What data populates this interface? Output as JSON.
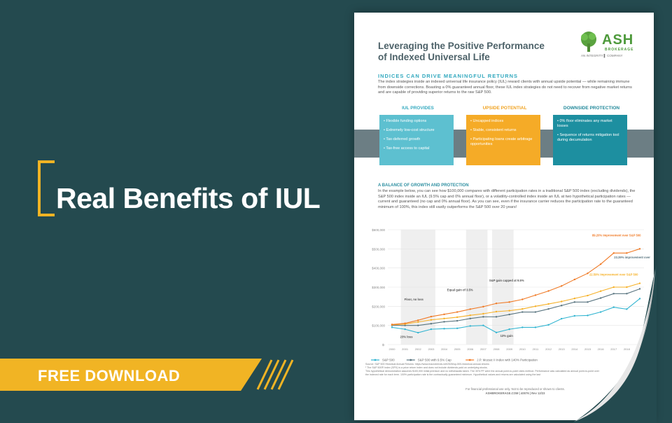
{
  "hero": {
    "title": "Real Benefits of IUL",
    "cta": "FREE DOWNLOAD"
  },
  "colors": {
    "background": "#244a4f",
    "accent": "#f1b424",
    "teal": "#33a9bf",
    "orange": "#f5ab27",
    "dark_teal": "#1d8fa0"
  },
  "doc": {
    "title_line1": "Leveraging the Positive Performance",
    "title_line2": "of Indexed Universal Life",
    "logo": {
      "name": "ASH",
      "sub": "BROKERAGE",
      "tagline": "AN INTEGRITY ▌ COMPANY",
      "icon": "tree-icon"
    },
    "section1_heading": "INDICES CAN DRIVE MEANINGFUL RETURNS",
    "section1_body": "The index strategies inside an indexed universal life insurance policy (IUL) reward clients with annual upside potential — while remaining immune from downside corrections. Boasting a 0% guaranteed annual floor, these IUL index strategies do not need to recover from negative market returns and are capable of providing superior returns to the raw S&P 500.",
    "columns": [
      {
        "heading": "IUL PROVIDES",
        "items": [
          "Flexible funding options",
          "Extremely low-cost structure",
          "Tax-deferred growth",
          "Tax-free access to capital"
        ]
      },
      {
        "heading": "UPSIDE POTENTIAL",
        "items": [
          "Uncapped indices",
          "Stable, consistent returns",
          "Participating loans create arbitrage opportunities"
        ]
      },
      {
        "heading": "DOWNSIDE PROTECTION",
        "items": [
          "0% floor eliminates any market losses",
          "Sequence of returns mitigation tool during decumulation"
        ]
      }
    ],
    "section2_heading": "A BALANCE OF GROWTH AND PROTECTION",
    "section2_body": "In the example below, you can see how $100,000 compares with different participation rates in a traditional S&P 500 index (excluding dividends), the S&P 500 index inside an IUL (9.5% cap and 0% annual floor), or a volatility-controlled index inside an IUL at two hypothetical participation rates — current and guaranteed (no cap and 0% annual floor). As you can see, even if the insurance carrier reduces the participation rate to the guaranteed minimum of 100%, this index still vastly outperforms the S&P 500 over 20 years!",
    "source_line": "Source: S&P 500 Historical Annual Returns: https://www.macrotrends.net/2526/sp-500-historical-annual-returns",
    "fine_print1": "¹ The S&P 500® Index (SPX) is a price return index and does not include dividends paid on underlying stocks.",
    "fine_print2": "This hypothetical demonstration assumes $100,000 initial premium and no withdrawals taken. The 30% PF were the annual point-to-point rates method. Performance was calculated as annual point-to-point over",
    "fine_print3": "the indexed rate for each term. 100% participation rate is the contractually guaranteed minimum. Hypothetical values and returns are calculated using the last",
    "disclaimer": "For financial professional use only. Not to be reproduced or shown to clients.",
    "footer": "ASHBROKERAGE.COM  |  40076  |  Rev 12/23"
  },
  "chart_data": {
    "type": "line",
    "x": [
      "2000",
      "2001",
      "2002",
      "2003",
      "2004",
      "2005",
      "2006",
      "2007",
      "2008",
      "2009",
      "2010",
      "2011",
      "2012",
      "2013",
      "2014",
      "2015",
      "2016",
      "2017",
      "2018",
      "2019"
    ],
    "y_ticks": [
      "$600,000",
      "$500,000",
      "$400,000",
      "$300,000",
      "$200,000",
      "$100,000",
      "$-"
    ],
    "ylim": [
      0,
      600000
    ],
    "series": [
      {
        "name": "S&P 500",
        "color": "#33b5d1",
        "values": [
          90000,
          80000,
          62000,
          80000,
          83000,
          85000,
          97000,
          100000,
          63000,
          80000,
          90000,
          90000,
          103000,
          135000,
          150000,
          152000,
          170000,
          195000,
          185000,
          240000
        ]
      },
      {
        "name": "S&P 500 with 9.5% Cap",
        "color": "#5a7580",
        "values": [
          100000,
          100000,
          100000,
          109000,
          119000,
          124000,
          136000,
          145000,
          145000,
          157000,
          170000,
          170000,
          186000,
          204000,
          222000,
          222000,
          243000,
          266000,
          266000,
          291000
        ]
      },
      {
        "name": "J.P. Morgan Mozaic II Index with 100% Participation",
        "color": "#f6b026",
        "values": [
          103000,
          107000,
          118000,
          129000,
          136000,
          143000,
          153000,
          161000,
          172000,
          177000,
          186000,
          200000,
          212000,
          225000,
          241000,
          256000,
          279000,
          300000,
          300000,
          320000
        ]
      },
      {
        "name": "J.P. Mozaic II Index with 140% Participation",
        "color": "#f07a26",
        "values": [
          105000,
          111000,
          127000,
          146000,
          158000,
          170000,
          185000,
          198000,
          215000,
          222000,
          236000,
          258000,
          280000,
          306000,
          340000,
          372000,
          420000,
          478000,
          478000,
          500000
        ]
      }
    ],
    "annotations": [
      "Floor, no loss",
      "23% loss",
      "Equal gain of 3.5%",
      "S&P gain capped at 9.5%",
      "13% gain",
      "89.20% improvement over S&P 500",
      "23.39% improvement over S&P 500",
      "22.59% improvement over S&P 500"
    ],
    "legend": [
      "S&P 500",
      "S&P 500 with 9.5% Cap",
      "J.P. Mozaic II Index with 140% Participation"
    ],
    "legend_position": "bottom"
  }
}
